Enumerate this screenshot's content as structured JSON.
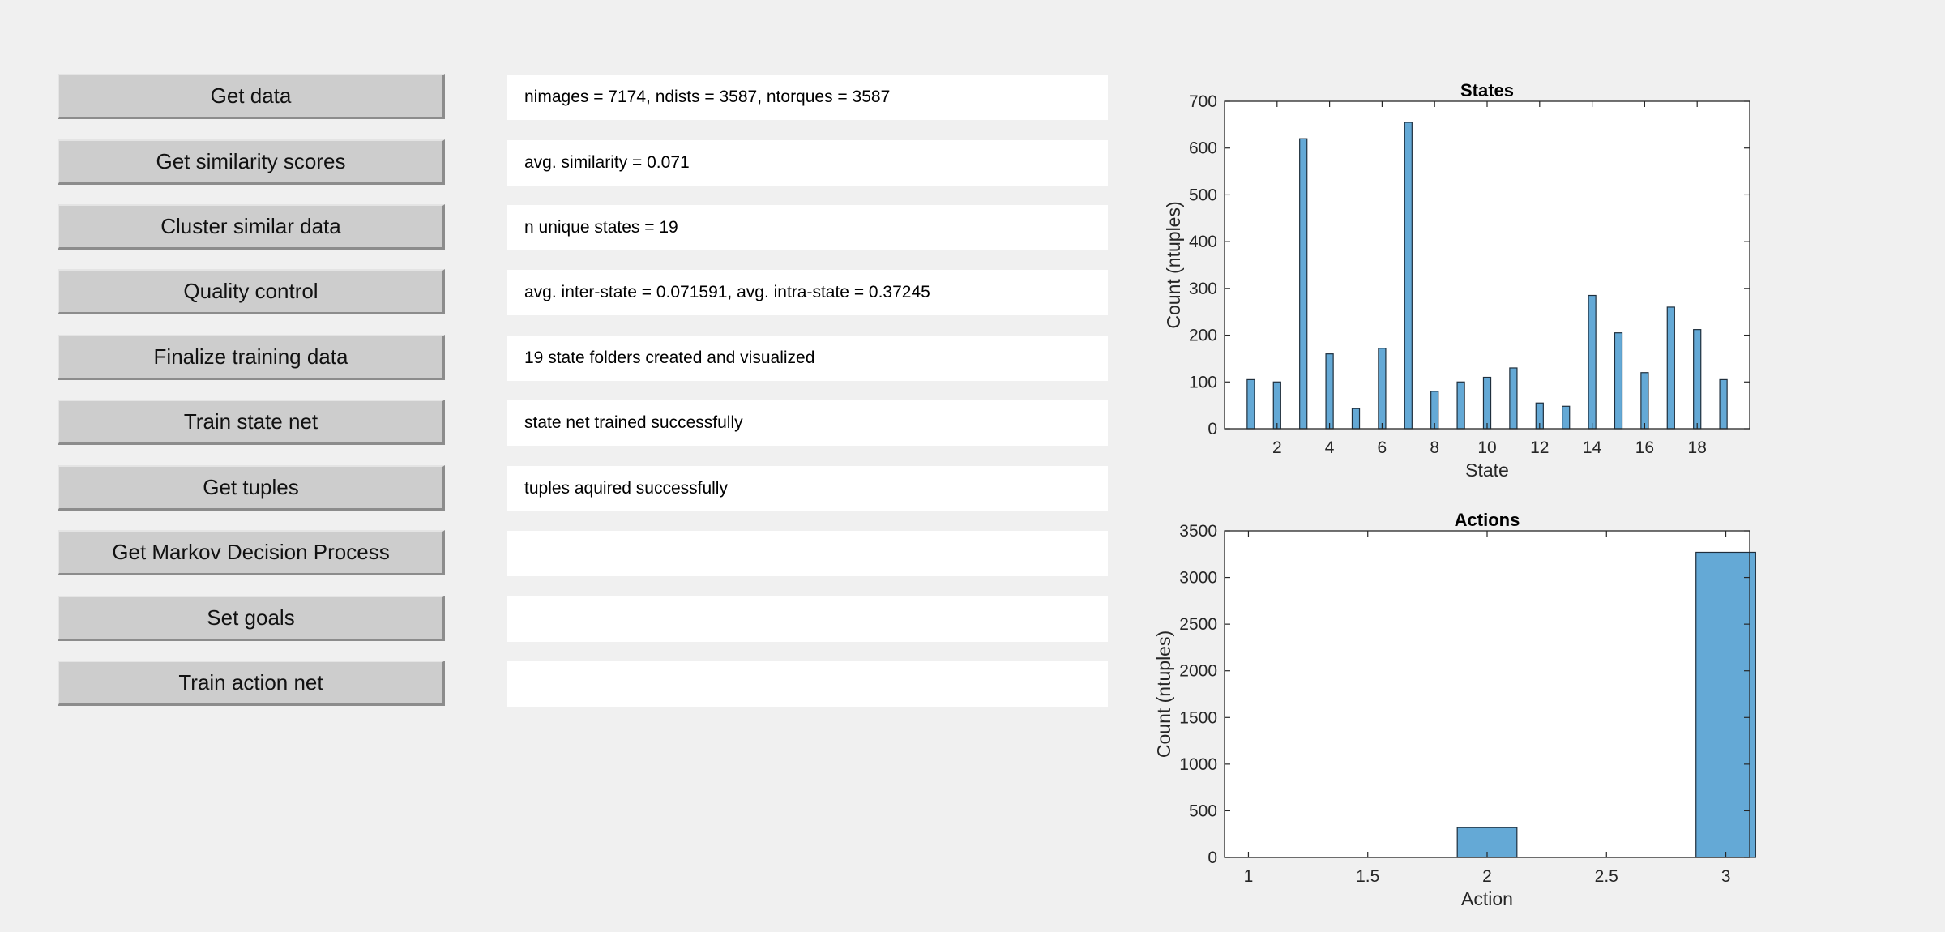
{
  "buttons": [
    {
      "label": "Get data"
    },
    {
      "label": "Get similarity scores"
    },
    {
      "label": "Cluster similar data"
    },
    {
      "label": "Quality control"
    },
    {
      "label": "Finalize training data"
    },
    {
      "label": "Train state net"
    },
    {
      "label": "Get tuples"
    },
    {
      "label": "Get Markov Decision Process"
    },
    {
      "label": "Set goals"
    },
    {
      "label": "Train action net"
    }
  ],
  "status": [
    {
      "text": "nimages = 7174, ndists = 3587, ntorques = 3587"
    },
    {
      "text": "avg. similarity = 0.071"
    },
    {
      "text": "n unique states = 19"
    },
    {
      "text": "avg. inter-state = 0.071591, avg. intra-state = 0.37245"
    },
    {
      "text": "19 state folders created and visualized"
    },
    {
      "text": "state net trained successfully"
    },
    {
      "text": "tuples aquired successfully"
    },
    {
      "text": ""
    },
    {
      "text": ""
    },
    {
      "text": ""
    }
  ],
  "colors": {
    "bar_fill": "#64a9d6",
    "bar_stroke": "#1f2f3d",
    "axis": "#262626"
  },
  "chart_data": [
    {
      "type": "bar",
      "title": "States",
      "xlabel": "State",
      "ylabel": "Count (ntuples)",
      "x": [
        1,
        2,
        3,
        4,
        5,
        6,
        7,
        8,
        9,
        10,
        11,
        12,
        13,
        14,
        15,
        16,
        17,
        18,
        19
      ],
      "values": [
        105,
        100,
        620,
        160,
        43,
        172,
        655,
        80,
        100,
        110,
        130,
        55,
        48,
        285,
        205,
        120,
        260,
        212,
        105
      ],
      "xlim": [
        0,
        20
      ],
      "ylim": [
        0,
        700
      ],
      "xticks": [
        2,
        4,
        6,
        8,
        10,
        12,
        14,
        16,
        18
      ],
      "yticks": [
        0,
        100,
        200,
        300,
        400,
        500,
        600,
        700
      ],
      "bar_width": 0.28
    },
    {
      "type": "bar",
      "title": "Actions",
      "xlabel": "Action",
      "ylabel": "Count (ntuples)",
      "x": [
        1,
        2,
        3
      ],
      "values": [
        0,
        320,
        3270
      ],
      "xlim": [
        0.9,
        3.1
      ],
      "ylim": [
        0,
        3500
      ],
      "xticks": [
        1,
        1.5,
        2,
        2.5,
        3
      ],
      "yticks": [
        0,
        500,
        1000,
        1500,
        2000,
        2500,
        3000,
        3500
      ],
      "bar_width": 0.25
    }
  ]
}
